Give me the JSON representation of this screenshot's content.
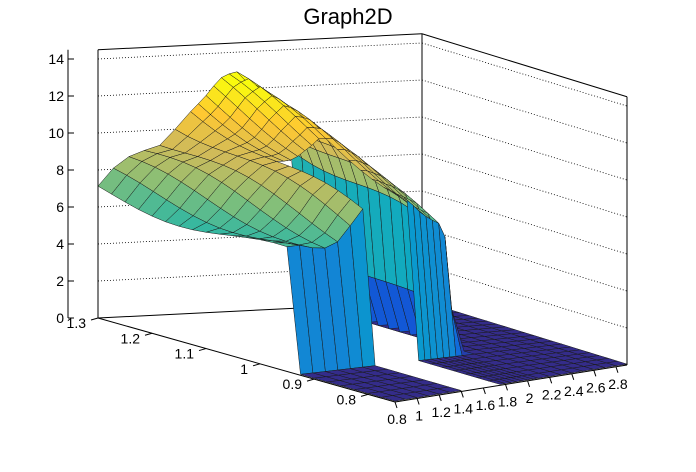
{
  "chart_data": {
    "type": "surface3d",
    "title": "Graph2D",
    "xlabel": "",
    "ylabel": "",
    "zlabel": "",
    "x_range": [
      0.8,
      2.9
    ],
    "y_range": [
      0.75,
      1.3
    ],
    "z_range": [
      0,
      14.5
    ],
    "x_ticks": [
      "0.8",
      "1",
      "1.2",
      "1.4",
      "1.6",
      "1.8",
      "2",
      "2.2",
      "2.4",
      "2.6",
      "2.8"
    ],
    "y_ticks": [
      "0.8",
      "0.9",
      "1",
      "1.1",
      "1.2",
      "1.3"
    ],
    "z_ticks": [
      "0",
      "2",
      "4",
      "6",
      "8",
      "10",
      "12",
      "14"
    ],
    "colormap": [
      "#352a87",
      "#0f5cdd",
      "#1481d6",
      "#06a4ca",
      "#2eb7a4",
      "#87bf77",
      "#d1bb59",
      "#fec832",
      "#f9fb0e"
    ],
    "grid": true,
    "surface_rows_y": [
      0.75,
      0.775,
      0.8,
      0.825,
      0.85,
      0.875,
      0.9,
      0.925,
      0.95,
      0.975,
      1.0,
      1.025,
      1.05,
      1.075,
      1.1,
      1.125,
      1.15,
      1.175,
      1.2,
      1.225,
      1.25,
      1.275,
      1.3
    ],
    "surface_cols_x": [
      0.8,
      0.9,
      1.0,
      1.1,
      1.2,
      1.3,
      1.4,
      1.45,
      1.5,
      1.55,
      1.6,
      1.65,
      1.7,
      1.75,
      1.8,
      1.85,
      1.9,
      1.95,
      2.0,
      2.05,
      2.1,
      2.2,
      2.3,
      2.4,
      2.5,
      2.6,
      2.7,
      2.8,
      2.9
    ],
    "surface_z_description": "plateau z≈6–12 for x≤1.4 and y≥0.95; hole near x 1.45–1.7; ridge x 1.75–2.05 up to ≈11; floor z≈0 elsewhere",
    "plateau_profile": {
      "x": [
        0.8,
        1.0,
        1.2,
        1.3,
        1.4,
        1.5,
        1.6,
        1.7,
        1.8,
        1.9,
        2.0,
        2.05
      ],
      "z_back": [
        7.0,
        8.2,
        9.5,
        10.5,
        11.2,
        11.6,
        12.2,
        12.5,
        11.9,
        11.0,
        10.0,
        9.0
      ],
      "z_front": [
        6.2,
        6.6,
        7.0,
        7.4,
        7.8,
        8.2,
        8.6,
        8.9,
        8.5,
        7.8,
        7.0,
        6.0
      ]
    }
  }
}
